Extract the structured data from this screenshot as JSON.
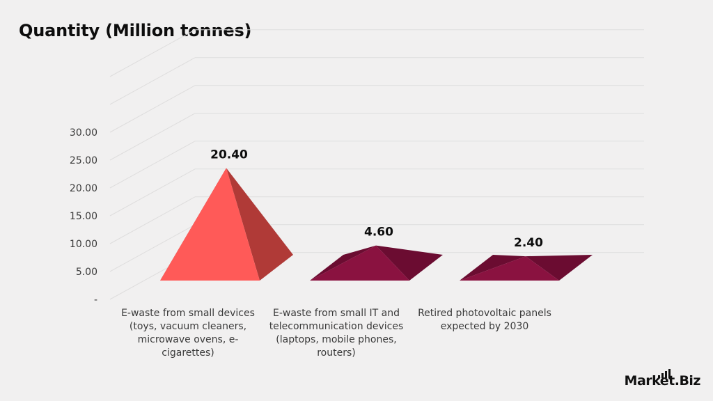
{
  "title": "Quantity (Million tonnes)",
  "logo_text": "Market.Biz",
  "colors": {
    "background": "#f1f0f0",
    "bar1_front": "#ff5a58",
    "bar1_side": "#b03a37",
    "bar_other_front": "#8a1240",
    "bar_other_side": "#6b0c31",
    "grid": "#dedddd"
  },
  "chart_data": {
    "type": "bar",
    "style": "3d-pyramid",
    "title": "Quantity (Million tonnes)",
    "categories": [
      "E-waste from small devices (toys, vacuum cleaners, microwave ovens, e-cigarettes)",
      "E-waste from small IT and telecommunication devices (laptops, mobile phones, routers)",
      "Retired photovoltaic panels expected by 2030"
    ],
    "category_lines": [
      [
        "E-waste from small devices",
        "(toys, vacuum cleaners,",
        "microwave ovens, e-",
        "cigarettes)"
      ],
      [
        "E-waste from small IT and",
        "telecommunication devices",
        "(laptops, mobile phones,",
        "routers)"
      ],
      [
        "Retired photovoltaic panels",
        "expected by 2030"
      ]
    ],
    "values": [
      20.4,
      4.6,
      2.4
    ],
    "data_labels": [
      "20.40",
      "4.60",
      "2.40"
    ],
    "yticks": [
      "-",
      "5.00",
      "10.00",
      "15.00",
      "20.00",
      "25.00",
      "30.00"
    ],
    "ylim": [
      0,
      30
    ],
    "grid": true,
    "xlabel": "",
    "ylabel": ""
  }
}
